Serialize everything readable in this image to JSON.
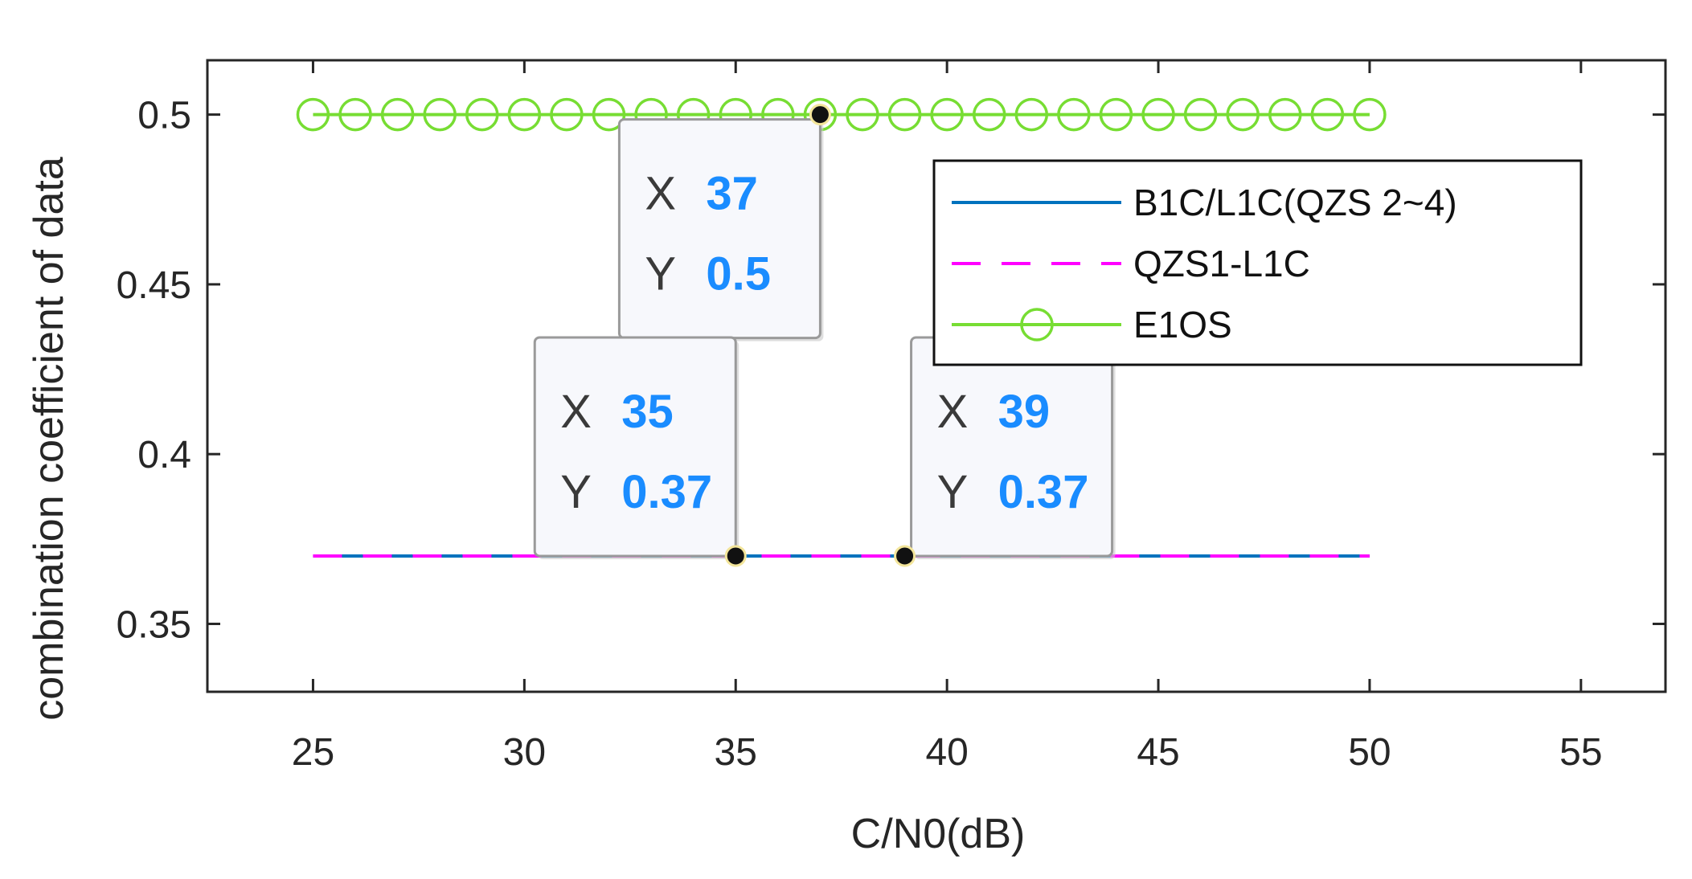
{
  "chart_data": {
    "type": "line",
    "xlabel": "C/N0(dB)",
    "ylabel": "combination coefficient of data",
    "xlim": [
      22.5,
      57
    ],
    "ylim": [
      0.33,
      0.516
    ],
    "xticks": [
      25,
      30,
      35,
      40,
      45,
      50,
      55
    ],
    "yticks": [
      0.35,
      0.4,
      0.45,
      0.5
    ],
    "xtick_labels": [
      "25",
      "30",
      "35",
      "40",
      "45",
      "50",
      "55"
    ],
    "ytick_labels": [
      "0.35",
      "0.4",
      "0.45",
      "0.5"
    ],
    "grid": false,
    "legend_position": "top-right",
    "series": [
      {
        "name": "B1C/L1C(QZS 2~4)",
        "color": "#0072BD",
        "style": "solid",
        "marker": "none",
        "x": [
          25,
          26,
          27,
          28,
          29,
          30,
          31,
          32,
          33,
          34,
          35,
          36,
          37,
          38,
          39,
          40,
          41,
          42,
          43,
          44,
          45,
          46,
          47,
          48,
          49,
          50
        ],
        "y": [
          0.37,
          0.37,
          0.37,
          0.37,
          0.37,
          0.37,
          0.37,
          0.37,
          0.37,
          0.37,
          0.37,
          0.37,
          0.37,
          0.37,
          0.37,
          0.37,
          0.37,
          0.37,
          0.37,
          0.37,
          0.37,
          0.37,
          0.37,
          0.37,
          0.37,
          0.37
        ]
      },
      {
        "name": "QZS1-L1C",
        "color": "#FF00FF",
        "style": "dashed",
        "marker": "none",
        "x": [
          25,
          26,
          27,
          28,
          29,
          30,
          31,
          32,
          33,
          34,
          35,
          36,
          37,
          38,
          39,
          40,
          41,
          42,
          43,
          44,
          45,
          46,
          47,
          48,
          49,
          50
        ],
        "y": [
          0.37,
          0.37,
          0.37,
          0.37,
          0.37,
          0.37,
          0.37,
          0.37,
          0.37,
          0.37,
          0.37,
          0.37,
          0.37,
          0.37,
          0.37,
          0.37,
          0.37,
          0.37,
          0.37,
          0.37,
          0.37,
          0.37,
          0.37,
          0.37,
          0.37,
          0.37
        ]
      },
      {
        "name": "E1OS",
        "color": "#77DD33",
        "style": "solid",
        "marker": "circle",
        "x": [
          25,
          26,
          27,
          28,
          29,
          30,
          31,
          32,
          33,
          34,
          35,
          36,
          37,
          38,
          39,
          40,
          41,
          42,
          43,
          44,
          45,
          46,
          47,
          48,
          49,
          50
        ],
        "y": [
          0.5,
          0.5,
          0.5,
          0.5,
          0.5,
          0.5,
          0.5,
          0.5,
          0.5,
          0.5,
          0.5,
          0.5,
          0.5,
          0.5,
          0.5,
          0.5,
          0.5,
          0.5,
          0.5,
          0.5,
          0.5,
          0.5,
          0.5,
          0.5,
          0.5,
          0.5
        ]
      }
    ],
    "datatips": [
      {
        "x": 37,
        "y": 0.5,
        "x_key": "X",
        "y_key": "Y",
        "x_text": "37",
        "y_text": "0.5",
        "placement": "below-left"
      },
      {
        "x": 35,
        "y": 0.37,
        "x_key": "X",
        "y_key": "Y",
        "x_text": "35",
        "y_text": "0.37",
        "placement": "above-left"
      },
      {
        "x": 39,
        "y": 0.37,
        "x_key": "X",
        "y_key": "Y",
        "x_text": "39",
        "y_text": "0.37",
        "placement": "above-right"
      }
    ]
  }
}
